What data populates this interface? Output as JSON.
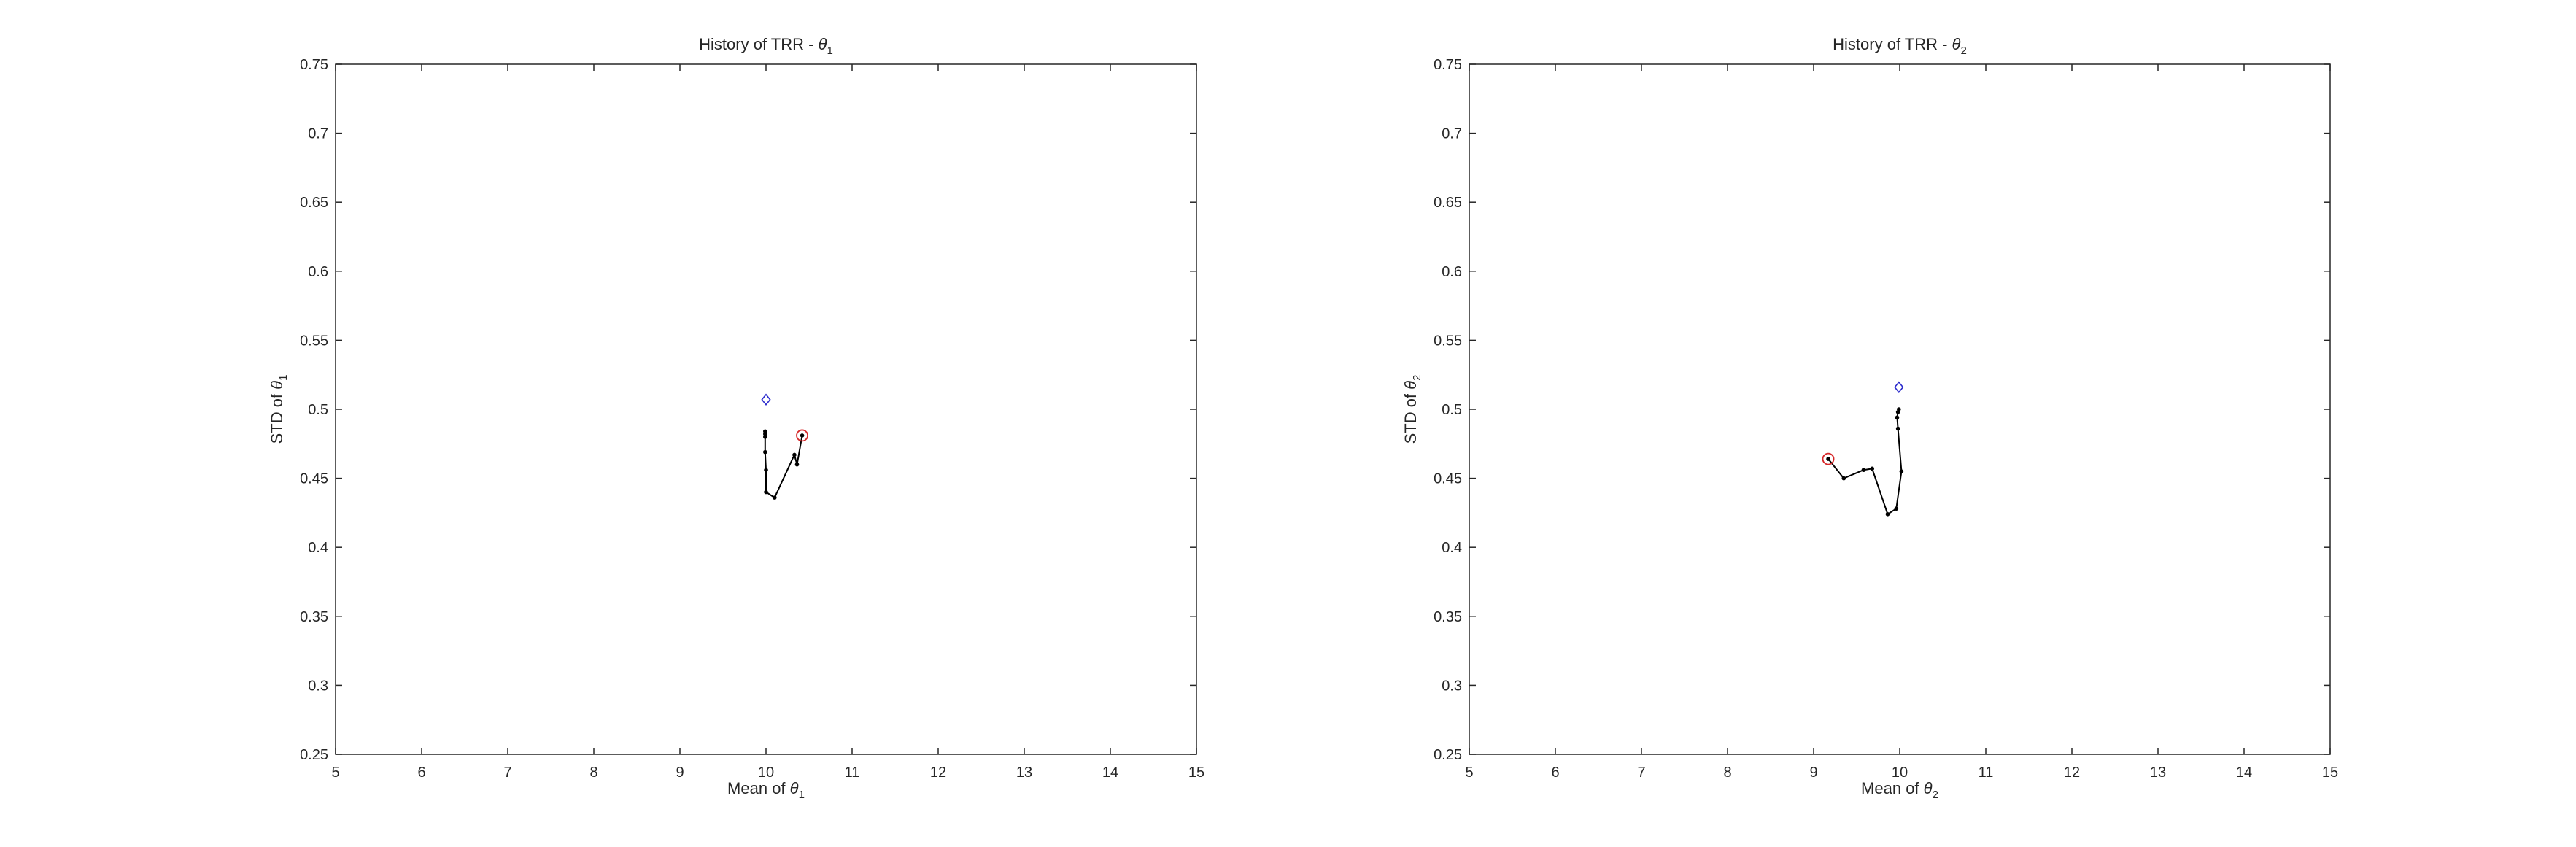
{
  "chart_data": [
    {
      "type": "line",
      "title_prefix": "History of TRR - ",
      "title_symbol": "θ",
      "title_sub": "1",
      "xlabel_prefix": "Mean of ",
      "xlabel_symbol": "θ",
      "xlabel_sub": "1",
      "ylabel_prefix": "STD of ",
      "ylabel_symbol": "θ",
      "ylabel_sub": "1",
      "xlim": [
        5,
        15
      ],
      "ylim": [
        0.25,
        0.75
      ],
      "xticks": [
        5,
        6,
        7,
        8,
        9,
        10,
        11,
        12,
        13,
        14,
        15
      ],
      "xtick_labels": [
        "5",
        "6",
        "7",
        "8",
        "9",
        "10",
        "11",
        "12",
        "13",
        "14",
        "15"
      ],
      "yticks": [
        0.25,
        0.3,
        0.35,
        0.4,
        0.45,
        0.5,
        0.55,
        0.6,
        0.65,
        0.7,
        0.75
      ],
      "ytick_labels": [
        "0.25",
        "0.3",
        "0.35",
        "0.4",
        "0.45",
        "0.5",
        "0.55",
        "0.6",
        "0.65",
        "0.7",
        "0.75"
      ],
      "grid": false,
      "history": {
        "x": [
          10.42,
          10.36,
          10.33,
          10.1,
          10.0,
          10.0,
          9.99,
          9.99,
          9.99,
          9.99
        ],
        "y": [
          0.481,
          0.46,
          0.467,
          0.436,
          0.44,
          0.456,
          0.469,
          0.48,
          0.482,
          0.484
        ],
        "color": "#000000"
      },
      "start_marker": {
        "x": 10.42,
        "y": 0.481,
        "color": "#d62728"
      },
      "target_marker": {
        "x": 10.0,
        "y": 0.507,
        "color": "#2b2bcc"
      }
    },
    {
      "type": "line",
      "title_prefix": "History of TRR - ",
      "title_symbol": "θ",
      "title_sub": "2",
      "xlabel_prefix": "Mean of ",
      "xlabel_symbol": "θ",
      "xlabel_sub": "2",
      "ylabel_prefix": "STD of ",
      "ylabel_symbol": "θ",
      "ylabel_sub": "2",
      "xlim": [
        5,
        15
      ],
      "ylim": [
        0.25,
        0.75
      ],
      "xticks": [
        5,
        6,
        7,
        8,
        9,
        10,
        11,
        12,
        13,
        14,
        15
      ],
      "xtick_labels": [
        "5",
        "6",
        "7",
        "8",
        "9",
        "10",
        "11",
        "12",
        "13",
        "14",
        "15"
      ],
      "yticks": [
        0.25,
        0.3,
        0.35,
        0.4,
        0.45,
        0.5,
        0.55,
        0.6,
        0.65,
        0.7,
        0.75
      ],
      "ytick_labels": [
        "0.25",
        "0.3",
        "0.35",
        "0.4",
        "0.45",
        "0.5",
        "0.55",
        "0.6",
        "0.65",
        "0.7",
        "0.75"
      ],
      "grid": false,
      "history": {
        "x": [
          9.17,
          9.35,
          9.58,
          9.68,
          9.86,
          9.96,
          10.02,
          9.98,
          9.97,
          9.98,
          9.99
        ],
        "y": [
          0.464,
          0.45,
          0.456,
          0.457,
          0.424,
          0.428,
          0.455,
          0.486,
          0.494,
          0.498,
          0.5
        ],
        "color": "#000000"
      },
      "start_marker": {
        "x": 9.17,
        "y": 0.464,
        "color": "#d62728"
      },
      "target_marker": {
        "x": 9.99,
        "y": 0.516,
        "color": "#2b2bcc"
      }
    }
  ]
}
